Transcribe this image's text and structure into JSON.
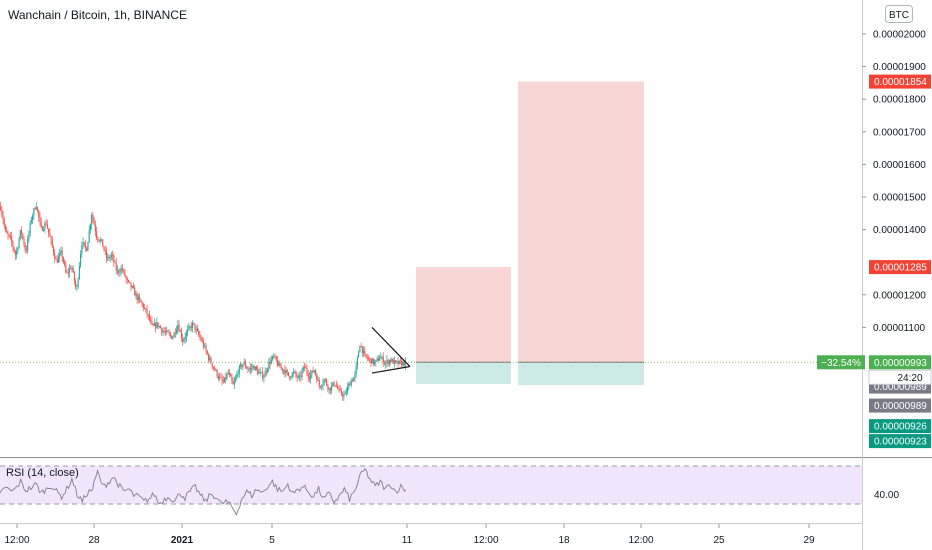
{
  "header": {
    "title": "Wanchain / Bitcoin, 1h, BINANCE"
  },
  "currency_button": {
    "label": "BTC"
  },
  "chart_data": {
    "type": "candlestick",
    "title": "Wanchain / Bitcoin, 1h, BINANCE",
    "price_axis": {
      "ticks": [
        {
          "value": 2e-05,
          "label": "0.00002000"
        },
        {
          "value": 1.9e-05,
          "label": "0.00001900"
        },
        {
          "value": 1.8e-05,
          "label": "0.00001800"
        },
        {
          "value": 1.7e-05,
          "label": "0.00001700"
        },
        {
          "value": 1.6e-05,
          "label": "0.00001600"
        },
        {
          "value": 1.5e-05,
          "label": "0.00001500"
        },
        {
          "value": 1.4e-05,
          "label": "0.00001400"
        },
        {
          "value": 1.2e-05,
          "label": "0.00001200"
        },
        {
          "value": 1.1e-05,
          "label": "0.00001100"
        }
      ],
      "ylim": [
        7.35e-06,
        2.14e-05
      ]
    },
    "time_axis": {
      "ticks": [
        {
          "label": "12:00",
          "bold": false
        },
        {
          "label": "28",
          "bold": false
        },
        {
          "label": "2021",
          "bold": true
        },
        {
          "label": "5",
          "bold": false
        },
        {
          "label": "11",
          "bold": false
        },
        {
          "label": "12:00",
          "bold": false
        },
        {
          "label": "18",
          "bold": false
        },
        {
          "label": "12:00",
          "bold": false
        },
        {
          "label": "25",
          "bold": false
        },
        {
          "label": "29",
          "bold": false
        }
      ]
    },
    "price_path": [
      1.47e-05,
      1.39e-05,
      1.37e-05,
      1.32e-05,
      1.4e-05,
      1.33e-05,
      1.43e-05,
      1.48e-05,
      1.4e-05,
      1.42e-05,
      1.36e-05,
      1.3e-05,
      1.33e-05,
      1.26e-05,
      1.29e-05,
      1.21e-05,
      1.36e-05,
      1.34e-05,
      1.45e-05,
      1.38e-05,
      1.36e-05,
      1.31e-05,
      1.32e-05,
      1.27e-05,
      1.28e-05,
      1.24e-05,
      1.22e-05,
      1.19e-05,
      1.17e-05,
      1.14e-05,
      1.1e-05,
      1.11e-05,
      1.09e-05,
      1.08e-05,
      1.07e-05,
      1.11e-05,
      1.06e-05,
      1.09e-05,
      1.11e-05,
      1.08e-05,
      1.05e-05,
      1.01e-05,
      9.8e-06,
      9.5e-06,
      9.3e-06,
      9.6e-06,
      9.2e-06,
      9.7e-06,
      9.9e-06,
      9.7e-06,
      9.8e-06,
      9.6e-06,
      9.5e-06,
      9.9e-06,
      1.01e-05,
      9.8e-06,
      9.7e-06,
      9.5e-06,
      9.6e-06,
      9.4e-06,
      9.8e-06,
      9.5e-06,
      9.7e-06,
      9.2e-06,
      9.4e-06,
      9.1e-06,
      9.3e-06,
      9e-06,
      8.9e-06,
      9.3e-06,
      9.5e-06,
      1.05e-05,
      1.01e-05,
      1e-05,
      9.9e-06,
      1.01e-05,
      9.9e-06,
      1e-05,
      9.9e-06,
      9.9e-06,
      9.9e-06
    ],
    "annotations": {
      "triangle_pattern": {
        "upper_line": [
          [
            1.1e-05,
            0
          ],
          [
            9.8e-06,
            1
          ]
        ],
        "lower_line": [
          [
            9.6e-06,
            0
          ],
          [
            9.8e-06,
            1
          ]
        ]
      },
      "position_small": {
        "entry": 9.93e-06,
        "target": 1.285e-05,
        "stop": 9.26e-06
      },
      "position_large": {
        "entry": 9.93e-06,
        "target": 1.854e-05,
        "stop": 9.23e-06
      }
    },
    "price_labels": [
      {
        "value": 1.854e-05,
        "label": "0.00001854",
        "color": "#f44336"
      },
      {
        "value": 1.285e-05,
        "label": "0.00001285",
        "color": "#f44336"
      },
      {
        "value": 9.93e-06,
        "label": "0.00000993",
        "color": "#4caf50"
      },
      {
        "value": 9.89e-06,
        "label": "0.00000989",
        "color": "#787b86"
      },
      {
        "value": 9.89e-06,
        "label": "0.00000989",
        "color": "#787b86"
      },
      {
        "value": 9.26e-06,
        "label": "0.00000926",
        "color": "#089981"
      },
      {
        "value": 9.23e-06,
        "label": "0.00000923",
        "color": "#089981"
      }
    ],
    "change_label": {
      "label": "−32.54%",
      "color": "#4caf50"
    },
    "countdown": {
      "label": "24:20"
    },
    "colors": {
      "up": "#26a69a",
      "down": "#ef5350",
      "profit_zone": "#f8d6d5",
      "loss_zone": "#cdeae6",
      "rsi_band": "#f1e6fb",
      "rsi_line": "#7e7e8f"
    }
  },
  "rsi_panel": {
    "label": "RSI (14, close)",
    "level_label": "40.00",
    "values": [
      45,
      52,
      48,
      50,
      56,
      49,
      51,
      54,
      47,
      50,
      53,
      48,
      44,
      50,
      58,
      46,
      40,
      47,
      50,
      64,
      52,
      55,
      60,
      54,
      48,
      50,
      45,
      44,
      40,
      42,
      46,
      38,
      42,
      44,
      40,
      47,
      43,
      48,
      52,
      45,
      40,
      46,
      44,
      38,
      40,
      36,
      30,
      42,
      48,
      45,
      50,
      47,
      52,
      56,
      50,
      48,
      54,
      46,
      50,
      52,
      48,
      44,
      50,
      42,
      46,
      40,
      44,
      50,
      42,
      48,
      60,
      66,
      58,
      52,
      56,
      50,
      54,
      48,
      52,
      49
    ]
  }
}
